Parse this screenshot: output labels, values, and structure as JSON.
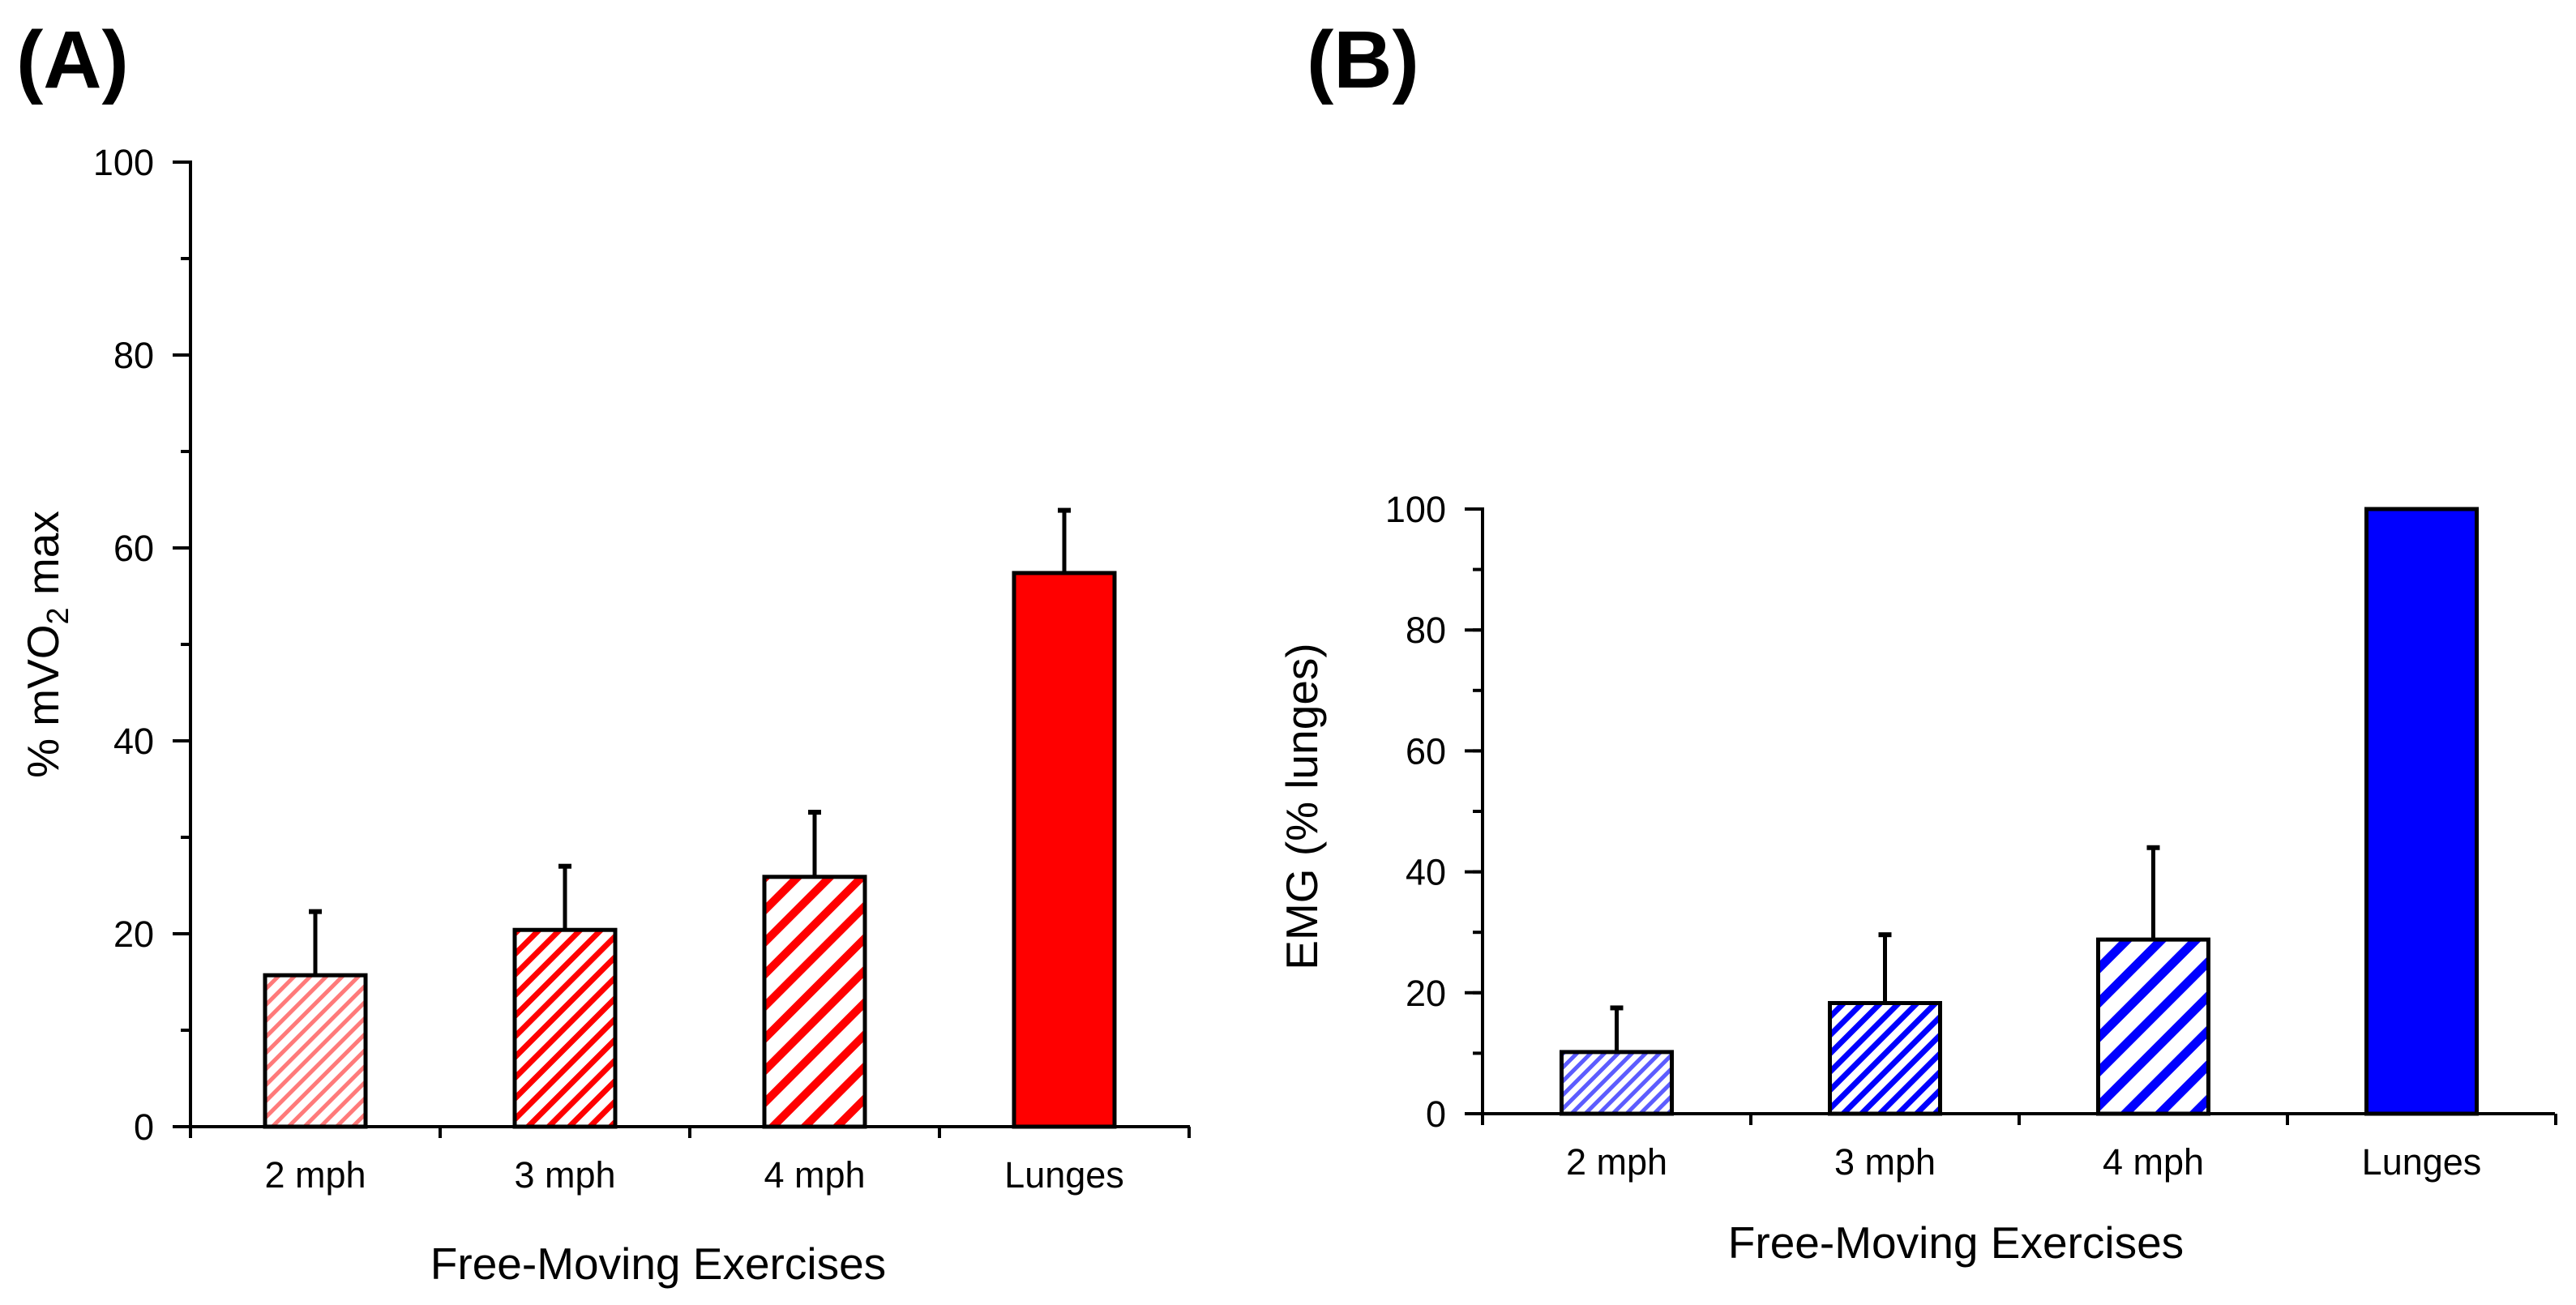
{
  "chart_data": [
    {
      "panel": "(A)",
      "type": "bar",
      "title": "",
      "categories": [
        "2 mph",
        "3 mph",
        "4 mph",
        "Lunges"
      ],
      "values": [
        15.7,
        20.4,
        25.9,
        57.4
      ],
      "errors": [
        6.6,
        6.6,
        6.7,
        6.5
      ],
      "xlabel": "Free-Moving Exercises",
      "ylabel": {
        "pre": "% mVO",
        "sub": "2",
        "post": " max"
      },
      "ylim": [
        0,
        100
      ],
      "yticks": [
        "0",
        "20",
        "40",
        "60",
        "80",
        "100"
      ],
      "ytick_values": [
        0,
        20,
        40,
        60,
        80,
        100
      ],
      "minor_step": 10,
      "color": "#ff0000",
      "fills": [
        "hatch-fine",
        "hatch-medium",
        "hatch-wide",
        "solid"
      ],
      "grid": false
    },
    {
      "panel": "(B)",
      "type": "bar",
      "title": "",
      "categories": [
        "2 mph",
        "3 mph",
        "4 mph",
        "Lunges"
      ],
      "values": [
        10.2,
        18.3,
        28.8,
        100
      ],
      "errors": [
        7.3,
        11.3,
        15.2,
        0
      ],
      "xlabel": "Free-Moving Exercises",
      "ylabel": {
        "pre": "EMG (% lunges)",
        "sub": "",
        "post": ""
      },
      "ylim": [
        0,
        100
      ],
      "yticks": [
        "0",
        "20",
        "40",
        "60",
        "80",
        "100"
      ],
      "ytick_values": [
        0,
        20,
        40,
        60,
        80,
        100
      ],
      "minor_step": 10,
      "color": "#0000ff",
      "fills": [
        "hatch-fine",
        "hatch-medium",
        "hatch-wide",
        "solid"
      ],
      "grid": false
    }
  ]
}
